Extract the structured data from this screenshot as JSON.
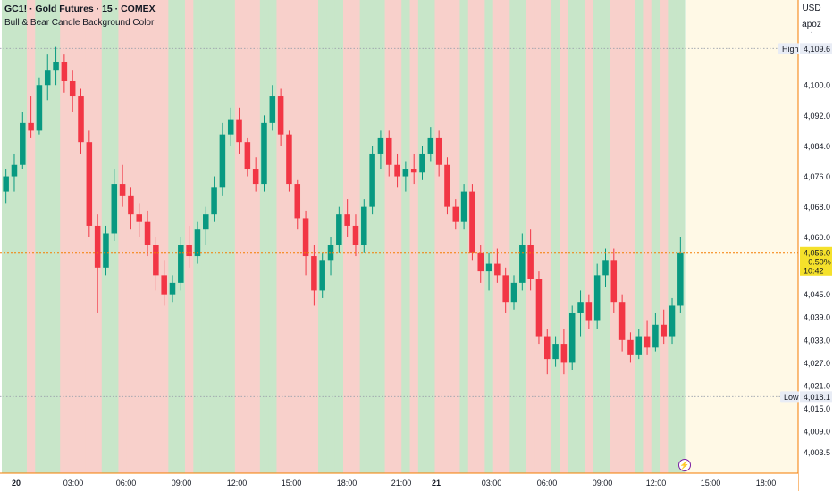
{
  "header": {
    "title": "GC1! · Gold Futures · 15 · COMEX",
    "indicator": "Bull & Bear Candle Background Color"
  },
  "currency_panel": {
    "currency": "USD",
    "user": "apoz",
    "marker": "·"
  },
  "price_badge": {
    "price": "4,056.0",
    "change": "−0.50%",
    "countdown": "10:42"
  },
  "markers": {
    "high_label": "High",
    "high_value": "4,109.6",
    "low_label": "Low",
    "low_value": "4,018.1"
  },
  "colors": {
    "bull_bg": "#c8e6c9",
    "bear_bg": "#f8d0cb",
    "future_bg": "#fff9e6",
    "bull_candle": "#089981",
    "bear_candle": "#f23645",
    "price_line": "#f57c00",
    "badge": "#f5e12b"
  },
  "chart_data": {
    "type": "candlestick",
    "title": "GC1! · Gold Futures · 15 · COMEX",
    "ylim": [
      3998,
      4120
    ],
    "y_axis_ticks": [
      "4,100.0",
      "4,092.0",
      "4,084.0",
      "4,076.0",
      "4,068.0",
      "4,060.0",
      "4,045.0",
      "4,039.0",
      "4,033.0",
      "4,027.0",
      "4,021.0",
      "4,015.0",
      "4,009.0",
      "4,003.5"
    ],
    "x_axis_ticks": [
      "20",
      "03:00",
      "06:00",
      "09:00",
      "12:00",
      "15:00",
      "18:00",
      "21:00",
      "21",
      "03:00",
      "06:00",
      "09:00",
      "12:00",
      "15:00",
      "18:00"
    ],
    "current_price": 4056.0,
    "session_high": 4109.6,
    "session_low": 4018.1,
    "candles_approx": [
      [
        4072,
        4078,
        4069,
        4076
      ],
      [
        4076,
        4082,
        4072,
        4079
      ],
      [
        4079,
        4093,
        4078,
        4090
      ],
      [
        4090,
        4097,
        4086,
        4088
      ],
      [
        4088,
        4102,
        4087,
        4100
      ],
      [
        4100,
        4108,
        4096,
        4104
      ],
      [
        4104,
        4110,
        4100,
        4106
      ],
      [
        4106,
        4108,
        4098,
        4101
      ],
      [
        4101,
        4104,
        4093,
        4097
      ],
      [
        4097,
        4099,
        4082,
        4085
      ],
      [
        4085,
        4088,
        4060,
        4063
      ],
      [
        4063,
        4066,
        4040,
        4052
      ],
      [
        4052,
        4063,
        4050,
        4061
      ],
      [
        4061,
        4078,
        4059,
        4074
      ],
      [
        4074,
        4079,
        4068,
        4071
      ],
      [
        4071,
        4073,
        4062,
        4066
      ],
      [
        4066,
        4069,
        4060,
        4064
      ],
      [
        4064,
        4067,
        4055,
        4058
      ],
      [
        4058,
        4060,
        4046,
        4050
      ],
      [
        4050,
        4054,
        4042,
        4045
      ],
      [
        4045,
        4050,
        4043,
        4048
      ],
      [
        4048,
        4060,
        4046,
        4058
      ],
      [
        4058,
        4063,
        4052,
        4055
      ],
      [
        4055,
        4064,
        4053,
        4062
      ],
      [
        4062,
        4068,
        4058,
        4066
      ],
      [
        4066,
        4076,
        4064,
        4073
      ],
      [
        4073,
        4090,
        4071,
        4087
      ],
      [
        4087,
        4094,
        4084,
        4091
      ],
      [
        4091,
        4094,
        4082,
        4085
      ],
      [
        4085,
        4086,
        4076,
        4078
      ],
      [
        4078,
        4081,
        4072,
        4074
      ],
      [
        4074,
        4092,
        4072,
        4090
      ],
      [
        4090,
        4100,
        4088,
        4097
      ],
      [
        4097,
        4099,
        4084,
        4087
      ],
      [
        4087,
        4088,
        4072,
        4074
      ],
      [
        4074,
        4075,
        4062,
        4065
      ],
      [
        4065,
        4067,
        4050,
        4055
      ],
      [
        4055,
        4058,
        4042,
        4046
      ],
      [
        4046,
        4056,
        4044,
        4054
      ],
      [
        4054,
        4060,
        4050,
        4058
      ],
      [
        4058,
        4068,
        4056,
        4066
      ],
      [
        4066,
        4070,
        4060,
        4063
      ],
      [
        4063,
        4066,
        4055,
        4058
      ],
      [
        4058,
        4070,
        4056,
        4068
      ],
      [
        4068,
        4084,
        4066,
        4082
      ],
      [
        4082,
        4088,
        4078,
        4086
      ],
      [
        4086,
        4088,
        4076,
        4079
      ],
      [
        4079,
        4082,
        4073,
        4076
      ],
      [
        4076,
        4080,
        4072,
        4078
      ],
      [
        4078,
        4082,
        4074,
        4077
      ],
      [
        4077,
        4084,
        4075,
        4082
      ],
      [
        4082,
        4089,
        4080,
        4086
      ],
      [
        4086,
        4088,
        4076,
        4079
      ],
      [
        4079,
        4081,
        4066,
        4068
      ],
      [
        4068,
        4070,
        4062,
        4064
      ],
      [
        4064,
        4074,
        4062,
        4072
      ],
      [
        4072,
        4074,
        4054,
        4056
      ],
      [
        4056,
        4058,
        4048,
        4051
      ],
      [
        4051,
        4056,
        4046,
        4053
      ],
      [
        4053,
        4057,
        4048,
        4050
      ],
      [
        4050,
        4052,
        4040,
        4043
      ],
      [
        4043,
        4050,
        4041,
        4048
      ],
      [
        4048,
        4061,
        4046,
        4058
      ],
      [
        4058,
        4062,
        4046,
        4049
      ],
      [
        4049,
        4051,
        4032,
        4034
      ],
      [
        4034,
        4036,
        4024,
        4028
      ],
      [
        4028,
        4034,
        4026,
        4032
      ],
      [
        4032,
        4036,
        4024,
        4027
      ],
      [
        4027,
        4042,
        4025,
        4040
      ],
      [
        4040,
        4046,
        4034,
        4043
      ],
      [
        4043,
        4045,
        4036,
        4038
      ],
      [
        4038,
        4053,
        4036,
        4050
      ],
      [
        4050,
        4057,
        4047,
        4054
      ],
      [
        4054,
        4057,
        4040,
        4043
      ],
      [
        4043,
        4045,
        4030,
        4033
      ],
      [
        4033,
        4035,
        4027,
        4029
      ],
      [
        4029,
        4036,
        4028,
        4034
      ],
      [
        4034,
        4038,
        4029,
        4031
      ],
      [
        4031,
        4040,
        4030,
        4037
      ],
      [
        4037,
        4041,
        4032,
        4034
      ],
      [
        4034,
        4044,
        4032,
        4042
      ],
      [
        4042,
        4060,
        4040,
        4056
      ]
    ]
  }
}
